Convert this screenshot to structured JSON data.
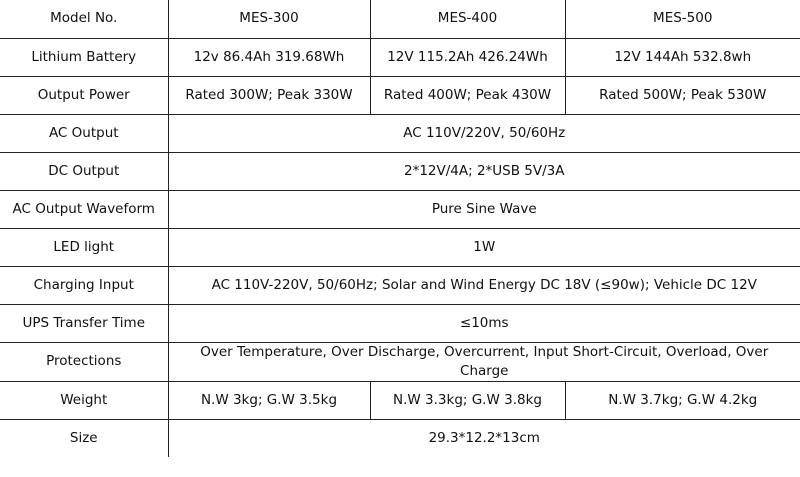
{
  "table": {
    "header": [
      "Model No.",
      "MES-300",
      "MES-400",
      "MES-500"
    ],
    "rows": [
      {
        "label": "Lithium Battery",
        "cells": [
          "12v 86.4Ah 319.68Wh",
          "12V 115.2Ah 426.24Wh",
          "12V 144Ah 532.8wh"
        ]
      },
      {
        "label": "Output Power",
        "cells": [
          "Rated 300W; Peak 330W",
          "Rated 400W; Peak 430W",
          "Rated 500W; Peak 530W"
        ]
      },
      {
        "label": "AC Output",
        "cells": [
          "AC 110V/220V, 50/60Hz"
        ]
      },
      {
        "label": "DC Output",
        "cells": [
          "2*12V/4A; 2*USB 5V/3A"
        ]
      },
      {
        "label": "AC Output Waveform",
        "cells": [
          "Pure Sine Wave"
        ]
      },
      {
        "label": "LED light",
        "cells": [
          "1W"
        ]
      },
      {
        "label": "Charging Input",
        "cells": [
          "AC 110V-220V, 50/60Hz; Solar and Wind Energy DC 18V (≤90w); Vehicle DC 12V"
        ]
      },
      {
        "label": "UPS Transfer Time",
        "cells": [
          "≤10ms"
        ]
      },
      {
        "label": "Protections",
        "cells": [
          "Over Temperature, Over Discharge, Overcurrent, Input Short-Circuit, Overload, Over Charge"
        ]
      },
      {
        "label": "Weight",
        "cells": [
          "N.W 3kg; G.W 3.5kg",
          "N.W 3.3kg; G.W 3.8kg",
          "N.W 3.7kg; G.W 4.2kg"
        ]
      },
      {
        "label": "Size",
        "cells": [
          "29.3*12.2*13cm"
        ]
      }
    ]
  }
}
